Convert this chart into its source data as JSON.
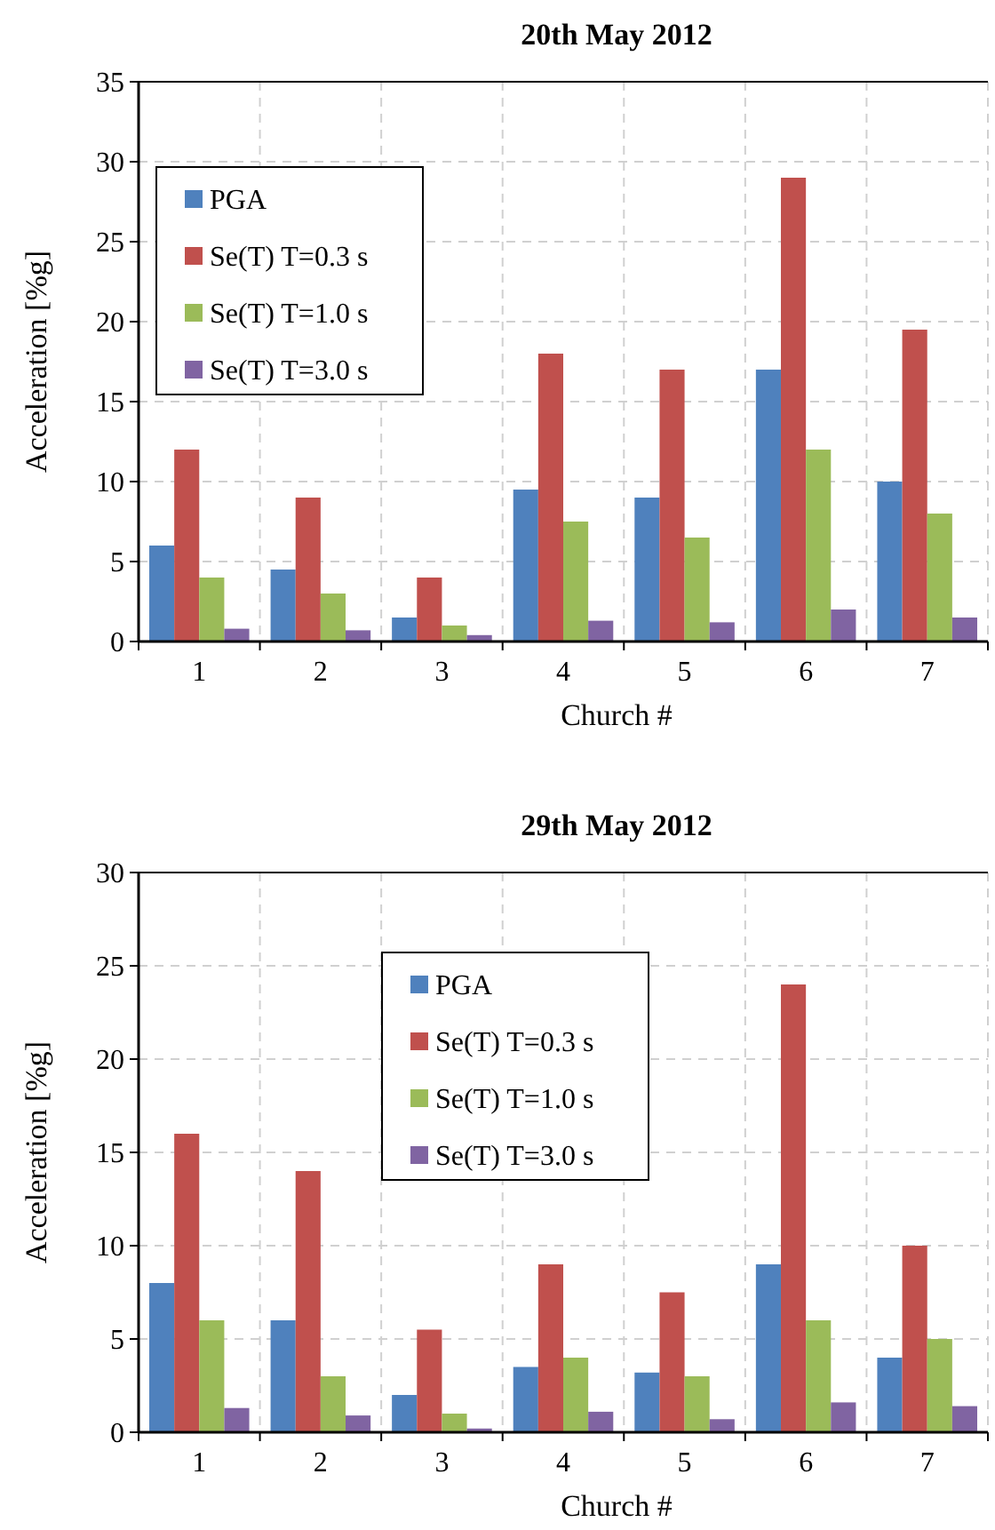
{
  "chart_data": [
    {
      "type": "bar",
      "title": "20th May 2012",
      "xlabel": "Church #",
      "ylabel": "Acceleration [%g]",
      "categories": [
        "1",
        "2",
        "3",
        "4",
        "5",
        "6",
        "7"
      ],
      "ylim": [
        0,
        35
      ],
      "yticks": [
        0,
        5,
        10,
        15,
        20,
        25,
        30,
        35
      ],
      "grid": true,
      "legend": "top left",
      "series": [
        {
          "name": "PGA",
          "color": "#4f81bd",
          "values": [
            6,
            4.5,
            1.5,
            9.5,
            9,
            17,
            10
          ]
        },
        {
          "name": "Se(T) T=0.3 s",
          "color": "#c0504d",
          "values": [
            12,
            9,
            4,
            18,
            17,
            29,
            19.5
          ]
        },
        {
          "name": "Se(T) T=1.0 s",
          "color": "#9bbb59",
          "values": [
            4,
            3,
            1,
            7.5,
            6.5,
            12,
            8
          ]
        },
        {
          "name": "Se(T) T=3.0 s",
          "color": "#8064a2",
          "values": [
            0.8,
            0.7,
            0.4,
            1.3,
            1.2,
            2,
            1.5
          ]
        }
      ]
    },
    {
      "type": "bar",
      "title": "29th May 2012",
      "xlabel": "Church #",
      "ylabel": "Acceleration [%g]",
      "categories": [
        "1",
        "2",
        "3",
        "4",
        "5",
        "6",
        "7"
      ],
      "ylim": [
        0,
        30
      ],
      "yticks": [
        0,
        5,
        10,
        15,
        20,
        25,
        30
      ],
      "grid": true,
      "legend": "top",
      "series": [
        {
          "name": "PGA",
          "color": "#4f81bd",
          "values": [
            8,
            6,
            2,
            3.5,
            3.2,
            9,
            4
          ]
        },
        {
          "name": "Se(T) T=0.3 s",
          "color": "#c0504d",
          "values": [
            16,
            14,
            5.5,
            9,
            7.5,
            24,
            10
          ]
        },
        {
          "name": "Se(T) T=1.0 s",
          "color": "#9bbb59",
          "values": [
            6,
            3,
            1,
            4,
            3,
            6,
            5
          ]
        },
        {
          "name": "Se(T) T=3.0 s",
          "color": "#8064a2",
          "values": [
            1.3,
            0.9,
            0.2,
            1.1,
            0.7,
            1.6,
            1.4
          ]
        }
      ]
    }
  ]
}
